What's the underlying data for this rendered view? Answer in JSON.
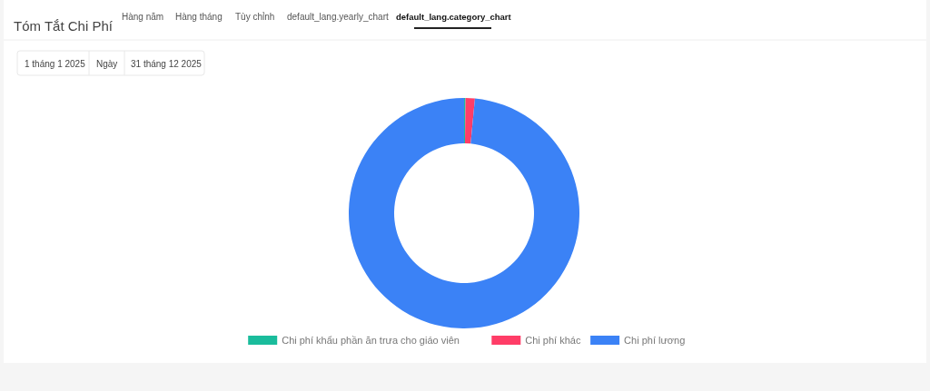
{
  "chart_data": {
    "type": "donut",
    "title": "Tóm Tắt Chi Phí",
    "categories": [
      "Chi phí khẩu phần ăn trưa cho giáo viên",
      "Chi phí khác",
      "Chi phí lương"
    ],
    "values": [
      0.2,
      1.3,
      98.5
    ],
    "colors": [
      "#1abc9c",
      "#ff3d67",
      "#3b82f6"
    ],
    "legend": "bottom",
    "annotations": [
      "Hàng năm",
      "Hàng tháng",
      "Tùy chỉnh",
      "default_lang.yearly_chart",
      "default_lang.category_chart",
      "1 tháng 1 2025",
      "Ngày",
      "31 tháng 12 2025"
    ]
  }
}
